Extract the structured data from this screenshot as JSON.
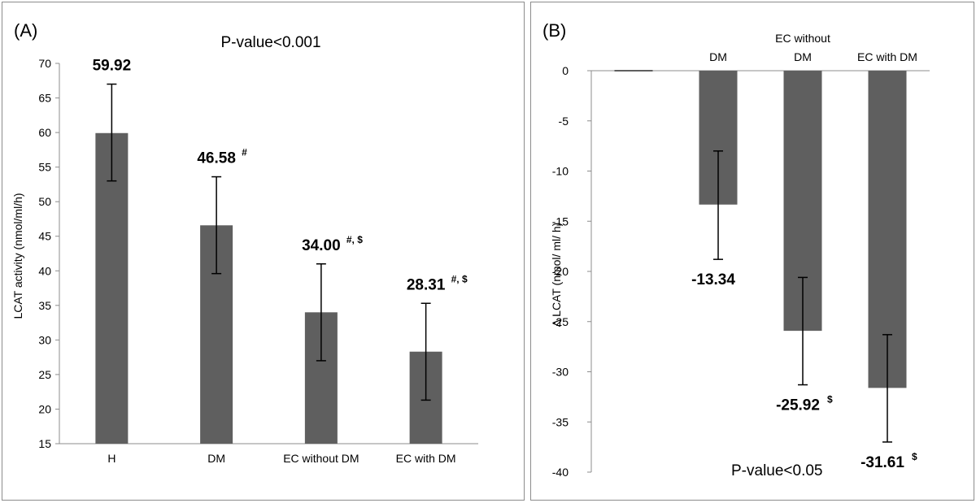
{
  "chart_data": [
    {
      "type": "bar",
      "panel_label": "(A)",
      "annotation": "P-value<0.001",
      "ylabel": "LCAT activity (nmol/ml/h)",
      "xlabel": "",
      "categories": [
        "H",
        "DM",
        "EC without DM",
        "EC with DM"
      ],
      "values": [
        59.92,
        46.58,
        34.0,
        28.31
      ],
      "error_low": [
        53.0,
        39.6,
        27.0,
        21.3
      ],
      "error_high": [
        67.0,
        53.6,
        41.0,
        35.3
      ],
      "value_labels": [
        "59.92",
        "46.58",
        "34.00",
        "28.31"
      ],
      "value_superscripts": [
        "",
        "#",
        "#, $",
        "#, $"
      ],
      "ylim": [
        15,
        70
      ],
      "yticks": [
        15,
        20,
        25,
        30,
        35,
        40,
        45,
        50,
        55,
        60,
        65,
        70
      ],
      "bar_color": "#5f5f5f",
      "grid": false
    },
    {
      "type": "bar",
      "panel_label": "(B)",
      "annotation": "P-value<0.05",
      "ylabel": "Δ LCAT (nmol/ ml/ h)",
      "xlabel": "",
      "categories": [
        "",
        "DM",
        "EC without DM",
        "EC with DM"
      ],
      "category_lines": [
        [
          ""
        ],
        [
          "DM"
        ],
        [
          "EC without",
          "DM"
        ],
        [
          "EC with DM"
        ]
      ],
      "values": [
        0,
        -13.34,
        -25.92,
        -31.61
      ],
      "error_low": [
        null,
        -18.8,
        -31.3,
        -37.0
      ],
      "error_high": [
        null,
        -8.0,
        -20.6,
        -26.3
      ],
      "value_labels": [
        "",
        "-13.34",
        "-25.92",
        "-31.61"
      ],
      "value_superscripts": [
        "",
        "",
        "$",
        "$"
      ],
      "ylim": [
        -40,
        0
      ],
      "yticks": [
        0,
        -5,
        -10,
        -15,
        -20,
        -25,
        -30,
        -35,
        -40
      ],
      "bar_color": "#5f5f5f",
      "grid": false
    }
  ]
}
